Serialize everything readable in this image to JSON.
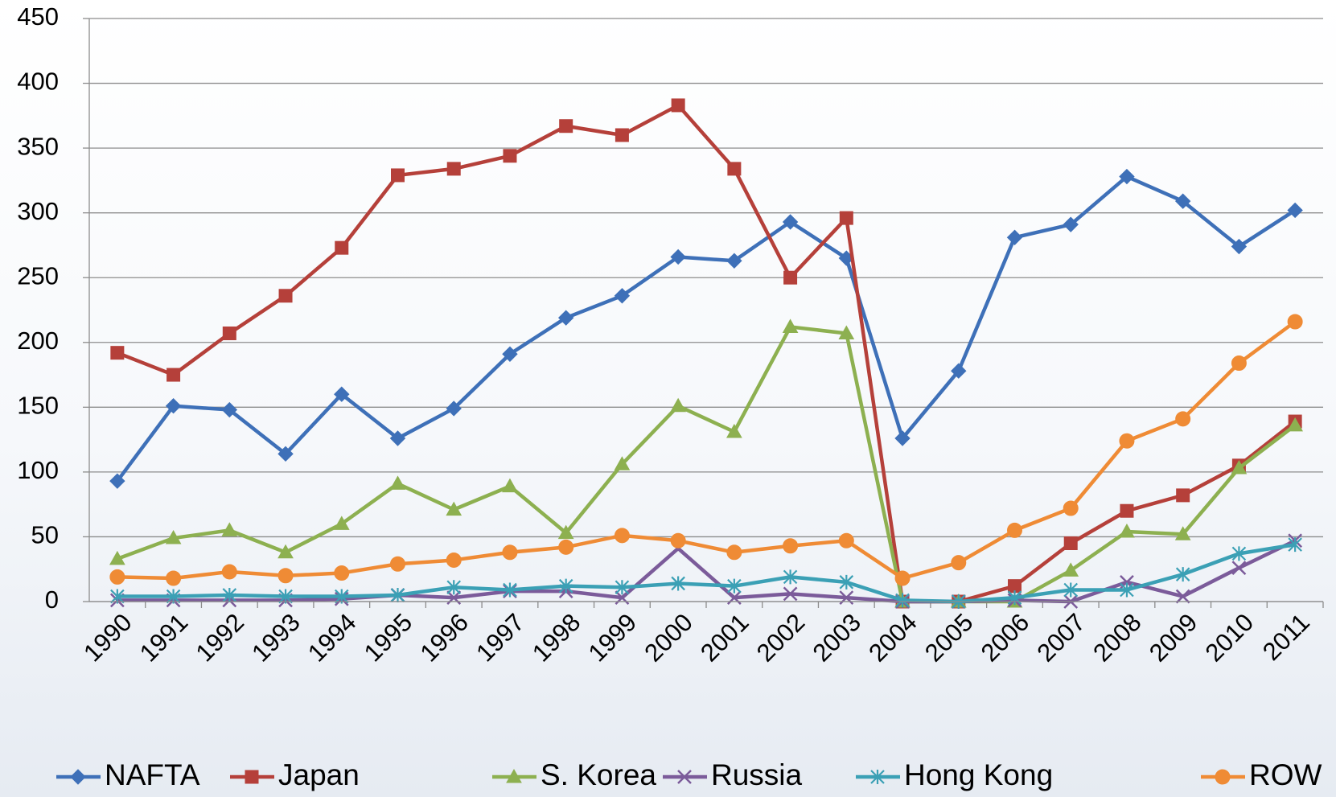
{
  "chart_data": {
    "type": "line",
    "categories": [
      "1990",
      "1991",
      "1992",
      "1993",
      "1994",
      "1995",
      "1996",
      "1997",
      "1998",
      "1999",
      "2000",
      "2001",
      "2002",
      "2003",
      "2004",
      "2005",
      "2006",
      "2007",
      "2008",
      "2009",
      "2010",
      "2011"
    ],
    "series": [
      {
        "name": "NAFTA",
        "color": "#3e70b8",
        "marker": "diamond",
        "values": [
          93,
          151,
          148,
          114,
          160,
          126,
          149,
          191,
          219,
          236,
          266,
          263,
          293,
          265,
          126,
          178,
          281,
          291,
          328,
          309,
          274,
          302
        ]
      },
      {
        "name": "Japan",
        "color": "#b5403a",
        "marker": "square",
        "values": [
          192,
          175,
          207,
          236,
          273,
          329,
          334,
          344,
          367,
          360,
          383,
          334,
          250,
          296,
          0,
          0,
          12,
          45,
          70,
          82,
          105,
          139
        ]
      },
      {
        "name": "S. Korea",
        "color": "#8db050",
        "marker": "triangle",
        "values": [
          33,
          49,
          55,
          38,
          60,
          91,
          71,
          89,
          53,
          106,
          151,
          131,
          212,
          207,
          0,
          0,
          0,
          24,
          54,
          52,
          103,
          136
        ]
      },
      {
        "name": "Russia",
        "color": "#7b5b9a",
        "marker": "x",
        "values": [
          1,
          1,
          1,
          1,
          2,
          5,
          3,
          8,
          8,
          3,
          41,
          3,
          6,
          3,
          0,
          0,
          1,
          0,
          15,
          4,
          26,
          47
        ]
      },
      {
        "name": "Hong Kong",
        "color": "#3ba0b5",
        "marker": "star",
        "values": [
          4,
          4,
          5,
          4,
          4,
          5,
          11,
          9,
          12,
          11,
          14,
          12,
          19,
          15,
          1,
          0,
          3,
          9,
          9,
          21,
          37,
          44
        ]
      },
      {
        "name": "ROW",
        "color": "#ef8b35",
        "marker": "circle",
        "values": [
          19,
          18,
          23,
          20,
          22,
          29,
          32,
          38,
          42,
          51,
          47,
          38,
          43,
          47,
          18,
          30,
          55,
          72,
          124,
          141,
          184,
          216
        ]
      }
    ],
    "ylim": [
      0,
      450
    ],
    "yticks": [
      0,
      50,
      100,
      150,
      200,
      250,
      300,
      350,
      400,
      450
    ],
    "grid": true,
    "legend": "bottom"
  }
}
